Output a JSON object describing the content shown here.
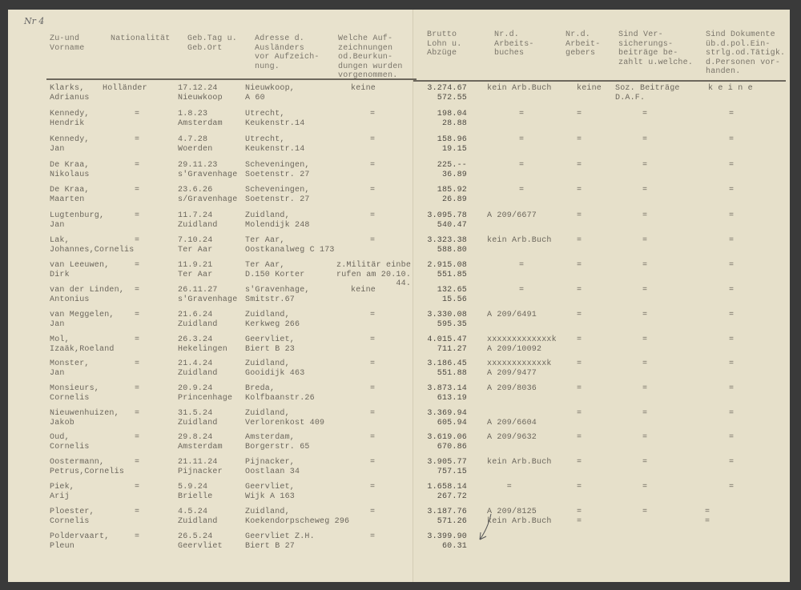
{
  "margin_note": "Nr 4",
  "headers": {
    "name": "Zu-und\nVorname",
    "nationality": "Nationalität",
    "birth": "Geb.Tag u.\nGeb.Ort",
    "address": "Adresse d.\nAusländers\nvor Aufzeich-\nnung.",
    "records": "Welche Auf-\nzeichnungen\nod.Beurkun-\ndungen wurden\nvorgenommen.",
    "gross": "Brutto\nLohn u.\nAbzüge",
    "workbook": "Nr.d.\nArbeits-\nbuches",
    "employer": "Nr.d.\nArbeit-\ngebers",
    "insurance": "Sind Ver-\nsicherungs-\nbeiträge be-\nzahlt u.welche.",
    "documents": "Sind Dokumente\nüb.d.pol.Ein-\nstrlg.od.Tätigk.\nd.Personen vor-\nhanden."
  },
  "rows": [
    {
      "name": "Klarks,\nAdrianus",
      "nationality": "Holländer",
      "birth": "17.12.24\nNieuwkoop",
      "address": "Nieuwkoop,\nA 60",
      "records": "keine",
      "gross": "3.274.67\n572.55",
      "workbook": "kein Arb.Buch",
      "employer": "keine",
      "insurance": "Soz. Beiträge\nD.A.F.",
      "documents": "k e i n e"
    },
    {
      "name": "Kennedy,\nHendrik",
      "nationality": "=",
      "birth": "1.8.23\nAmsterdam",
      "address": "Utrecht,\nKeukenstr.14",
      "records": "=",
      "gross": "198.04\n28.88",
      "workbook": "=",
      "employer": "=",
      "insurance": "=",
      "documents": "="
    },
    {
      "name": "Kennedy,\nJan",
      "nationality": "=",
      "birth": "4.7.28\nWoerden",
      "address": "Utrecht,\nKeukenstr.14",
      "records": "=",
      "gross": "158.96\n19.15",
      "workbook": "=",
      "employer": "=",
      "insurance": "=",
      "documents": "="
    },
    {
      "name": "De Kraa,\nNikolaus",
      "nationality": "=",
      "birth": "29.11.23\ns'Gravenhage",
      "address": "Scheveningen,\nSoetenstr. 27",
      "records": "=",
      "gross": "225.--\n36.89",
      "workbook": "=",
      "employer": "=",
      "insurance": "=",
      "documents": "="
    },
    {
      "name": "De Kraa,\nMaarten",
      "nationality": "=",
      "birth": "23.6.26\ns/Gravenhage",
      "address": "Scheveningen,\nSoetenstr. 27",
      "records": "=",
      "gross": "185.92\n26.89",
      "workbook": "=",
      "employer": "=",
      "insurance": "=",
      "documents": "="
    },
    {
      "name": "Lugtenburg,\nJan",
      "nationality": "=",
      "birth": "11.7.24\nZuidland",
      "address": "Zuidland,\nMolendijk 248",
      "records": "=",
      "gross": "3.095.78\n540.47",
      "workbook": "A 209/6677",
      "employer": "=",
      "insurance": "=",
      "documents": "="
    },
    {
      "name": "Lak,\nJohannes,Cornelis",
      "nationality": "=",
      "birth": "7.10.24\nTer Aar",
      "address": "Ter Aar,\nOostkanalweg C 173",
      "records": "=",
      "gross": "3.323.38\n588.80",
      "workbook": "kein Arb.Buch",
      "employer": "=",
      "insurance": "=",
      "documents": "="
    },
    {
      "name": "van Leeuwen,\nDirk",
      "nationality": "=",
      "birth": "11.9.21\nTer Aar",
      "address": "Ter Aar,\nD.150 Korter",
      "records": "z.Militär einbe\nrufen am 20.10.\n            44.",
      "gross": "2.915.08\n551.85",
      "workbook": "=",
      "employer": "=",
      "insurance": "=",
      "documents": "="
    },
    {
      "name": "van der Linden,\nAntonius",
      "nationality": "=",
      "birth": "26.11.27\ns'Gravenhage",
      "address": "s'Gravenhage,\nSmitstr.67",
      "records": "keine",
      "gross": "132.65\n15.56",
      "workbook": "=",
      "employer": "=",
      "insurance": "=",
      "documents": "="
    },
    {
      "name": "van Meggelen,\nJan",
      "nationality": "=",
      "birth": "21.6.24\nZuidland",
      "address": "Zuidland,\nKerkweg 266",
      "records": "=",
      "gross": "3.330.08\n595.35",
      "workbook": "A 209/6491",
      "employer": "=",
      "insurance": "=",
      "documents": "="
    },
    {
      "name": "Mol,\nIzaäk,Roeland",
      "nationality": "=",
      "birth": "26.3.24\nHekelingen",
      "address": "Geervliet,\nBiert B 23",
      "records": "=",
      "gross": "4.015.47\n711.27",
      "workbook": "xxxxxxxxxxxxxk\nA 209/10092",
      "employer": "=",
      "insurance": "=",
      "documents": "="
    },
    {
      "name": "Monster,\nJan",
      "nationality": "=",
      "birth": "21.4.24\nZuidland",
      "address": "Zuidland,\nGooidijk 463",
      "records": "=",
      "gross": "3.186.45\n551.88",
      "workbook": "xxxxxxxxxxxxk\nA 209/9477",
      "employer": "=",
      "insurance": "=",
      "documents": "="
    },
    {
      "name": "Monsieurs,\nCornelis",
      "nationality": "=",
      "birth": "20.9.24\nPrincenhage",
      "address": "Breda,\nKolfbaanstr.26",
      "records": "=",
      "gross": "3.873.14\n613.19",
      "workbook": "A 209/8036",
      "employer": "=",
      "insurance": "=",
      "documents": "="
    },
    {
      "name": "Nieuwenhuizen,\nJakob",
      "nationality": "=",
      "birth": "31.5.24\nZuidland",
      "address": "Zuidland,\nVerlorenkost 409",
      "records": "=",
      "gross": "3.369.94\n605.94",
      "workbook": "\nA 209/6604",
      "employer": "=",
      "insurance": "=",
      "documents": "="
    },
    {
      "name": "Oud,\nCornelis",
      "nationality": "=",
      "birth": "29.8.24\nAmsterdam",
      "address": "Amsterdam,\nBorgerstr. 65",
      "records": "=",
      "gross": "3.619.06\n670.86",
      "workbook": "A 209/9632",
      "employer": "=",
      "insurance": "=",
      "documents": "="
    },
    {
      "name": "Oostermann,\nPetrus,Cornelis",
      "nationality": "=",
      "birth": "21.11.24\nPijnacker",
      "address": "Pijnacker,\nOostlaan 34",
      "records": "=",
      "gross": "3.905.77\n757.15",
      "workbook": "kein Arb.Buch",
      "employer": "=",
      "insurance": "=",
      "documents": "="
    },
    {
      "name": "Piek,\nArij",
      "nationality": "=",
      "birth": "5.9.24\nBrielle",
      "address": "Geervliet,\nWijk A 163",
      "records": "=",
      "gross": "1.658.14\n267.72",
      "workbook": "    =",
      "employer": "=",
      "insurance": "=",
      "documents": "="
    },
    {
      "name": "Ploester,\nCornelis",
      "nationality": "=",
      "birth": "4.5.24\nZuidland",
      "address": "Zuidland,\nKoekendorpscheweg 296",
      "records": "=",
      "gross": "3.187.76\n571.26",
      "workbook": "A 209/8125\nkein Arb.Buch",
      "employer": "=\n=",
      "insurance": "=",
      "documents": "=\n="
    },
    {
      "name": "Poldervaart,\nPleun",
      "nationality": "=",
      "birth": "26.5.24\nGeervliet",
      "address": "Geervliet Z.H.\nBiert B 27",
      "records": "=",
      "gross": "3.399.90\n60.31",
      "workbook": "",
      "employer": "",
      "insurance": "",
      "documents": ""
    }
  ]
}
